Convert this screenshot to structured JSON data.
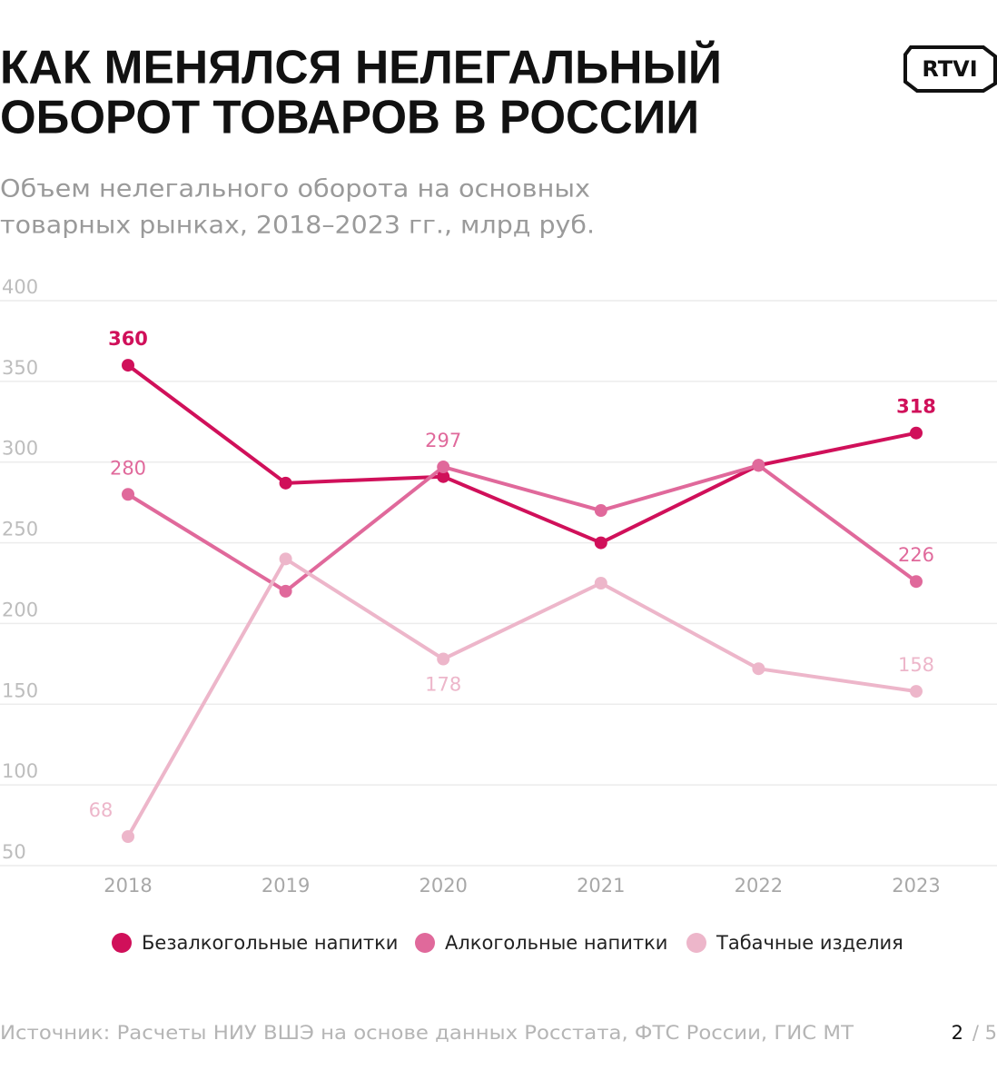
{
  "logo": "RTVI",
  "source": "Источник: Расчеты НИУ ВШЭ на основе данных Росстата, ФТС России, ГИС МТ",
  "page": {
    "current": "2",
    "rest": "/ 5"
  },
  "chart_data": {
    "type": "line",
    "title": [
      "КАК МЕНЯЛСЯ НЕЛЕГАЛЬНЫЙ",
      "ОБОРОТ ТОВАРОВ В РОССИИ"
    ],
    "subtitle": [
      "Объем нелегального оборота на основных",
      "товарных рынках, 2018–2023 гг., млрд руб."
    ],
    "categories": [
      "2018",
      "2019",
      "2020",
      "2021",
      "2022",
      "2023"
    ],
    "series": [
      {
        "name": "Безалкогольные напитки",
        "color": "#d0105a",
        "values": [
          360,
          287,
          291,
          250,
          298,
          318
        ],
        "value_labels": [
          360,
          null,
          null,
          null,
          null,
          318
        ]
      },
      {
        "name": "Алкогольные напитки",
        "color": "#e0699b",
        "values": [
          280,
          220,
          297,
          270,
          298,
          226
        ],
        "value_labels": [
          280,
          null,
          297,
          null,
          null,
          226
        ]
      },
      {
        "name": "Табачные изделия",
        "color": "#edb6ca",
        "values": [
          68,
          240,
          178,
          225,
          172,
          158
        ],
        "value_labels": [
          68,
          null,
          178,
          null,
          null,
          158
        ]
      }
    ],
    "ylim": [
      50,
      400
    ],
    "yticks": [
      50,
      100,
      150,
      200,
      250,
      300,
      350,
      400
    ],
    "grid": true,
    "legend": "bottom"
  }
}
